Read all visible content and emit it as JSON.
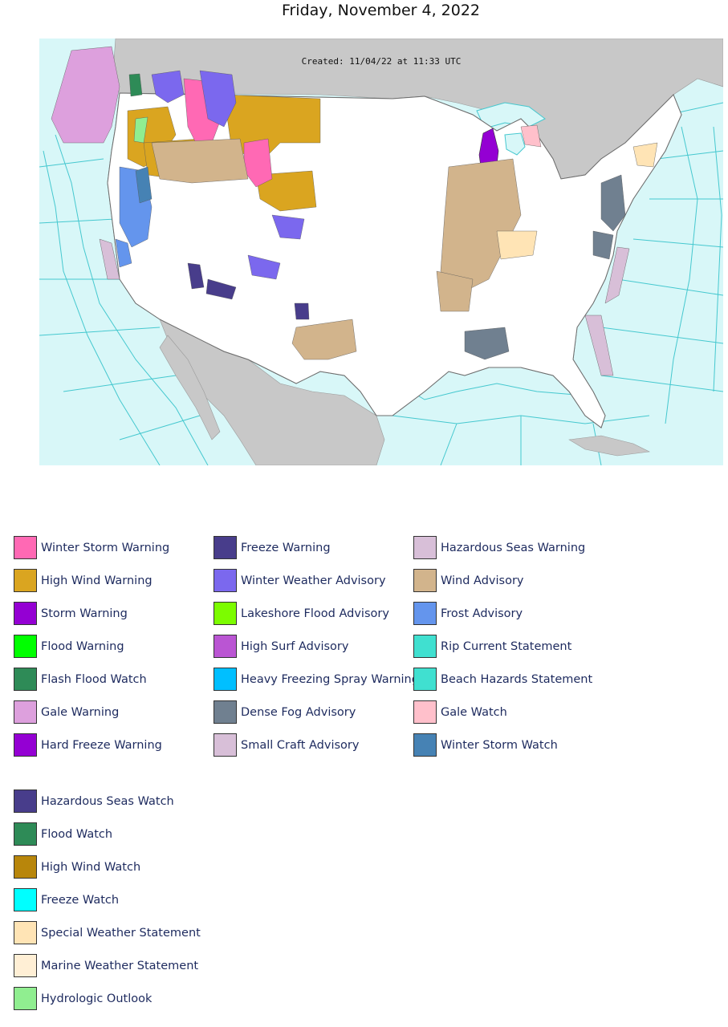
{
  "page": {
    "title": "Friday, November 4, 2022"
  },
  "map": {
    "caption": "Created: 11/04/22 at 11:33 UTC",
    "colors": {
      "ocean": "#d8f7f8",
      "land_outside": "#c8c8c8",
      "land_us": "#ffffff",
      "county_lines": "#b4b4b4",
      "marine_zone_lines": "#45c8cf"
    }
  },
  "legend": {
    "columns": [
      [
        {
          "label": "Winter Storm Warning",
          "color": "#ff69b4"
        },
        {
          "label": "High Wind Warning",
          "color": "#daa520"
        },
        {
          "label": "Storm Warning",
          "color": "#9400d3"
        },
        {
          "label": "Flood Warning",
          "color": "#00ff00"
        },
        {
          "label": "Flash Flood Watch",
          "color": "#2e8b57"
        },
        {
          "label": "Gale Warning",
          "color": "#dda0dd"
        },
        {
          "label": "Hard Freeze Warning",
          "color": "#9400d3"
        }
      ],
      [
        {
          "label": "Freeze Warning",
          "color": "#483d8b"
        },
        {
          "label": "Winter Weather Advisory",
          "color": "#7b68ee"
        },
        {
          "label": "Lakeshore Flood Advisory",
          "color": "#7cfc00"
        },
        {
          "label": "High Surf Advisory",
          "color": "#ba55d3"
        },
        {
          "label": "Heavy Freezing Spray Warning",
          "color": "#00bfff"
        },
        {
          "label": "Dense Fog Advisory",
          "color": "#708090"
        },
        {
          "label": "Small Craft Advisory",
          "color": "#d8bfd8"
        }
      ],
      [
        {
          "label": "Hazardous Seas Warning",
          "color": "#d8bfd8"
        },
        {
          "label": "Wind Advisory",
          "color": "#d2b48c"
        },
        {
          "label": "Frost Advisory",
          "color": "#6495ed"
        },
        {
          "label": "Rip Current Statement",
          "color": "#40e0d0"
        },
        {
          "label": "Beach Hazards Statement",
          "color": "#40e0d0"
        },
        {
          "label": "Gale Watch",
          "color": "#ffc0cb"
        },
        {
          "label": "Winter Storm Watch",
          "color": "#4682b4"
        }
      ]
    ],
    "extra": [
      {
        "label": "Hazardous Seas Watch",
        "color": "#483d8b"
      },
      {
        "label": "Flood Watch",
        "color": "#2e8b57"
      },
      {
        "label": "High Wind Watch",
        "color": "#b8860b"
      },
      {
        "label": "Freeze Watch",
        "color": "#00ffff"
      },
      {
        "label": "Special Weather Statement",
        "color": "#ffe4b5"
      },
      {
        "label": "Marine Weather Statement",
        "color": "#ffefd5"
      },
      {
        "label": "Hydrologic Outlook",
        "color": "#90ee90"
      }
    ]
  }
}
